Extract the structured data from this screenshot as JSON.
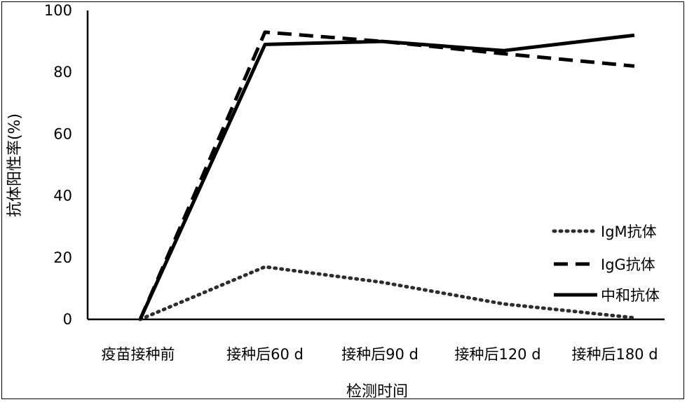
{
  "chart_data": {
    "type": "line",
    "xlabel": "检测时间",
    "ylabel": "抗体阳性率(%)",
    "ylim": [
      0,
      100
    ],
    "yticks": [
      "0",
      "20",
      "40",
      "60",
      "80",
      "100"
    ],
    "categories": [
      "疫苗接种前",
      "接种后60 d",
      "接种后90 d",
      "接种后120 d",
      "接种后180 d"
    ],
    "grid": false,
    "legend_position": "bottom-right",
    "series": [
      {
        "name": "IgM抗体",
        "values": [
          0,
          17,
          12,
          5,
          0.5
        ],
        "style": "dotted",
        "color": "#2d2d2d"
      },
      {
        "name": "IgG抗体",
        "values": [
          0,
          93,
          90,
          86,
          82
        ],
        "style": "dashed",
        "color": "#000000"
      },
      {
        "name": "中和抗体",
        "values": [
          0,
          89,
          90,
          87,
          92
        ],
        "style": "solid",
        "color": "#000000"
      }
    ]
  }
}
